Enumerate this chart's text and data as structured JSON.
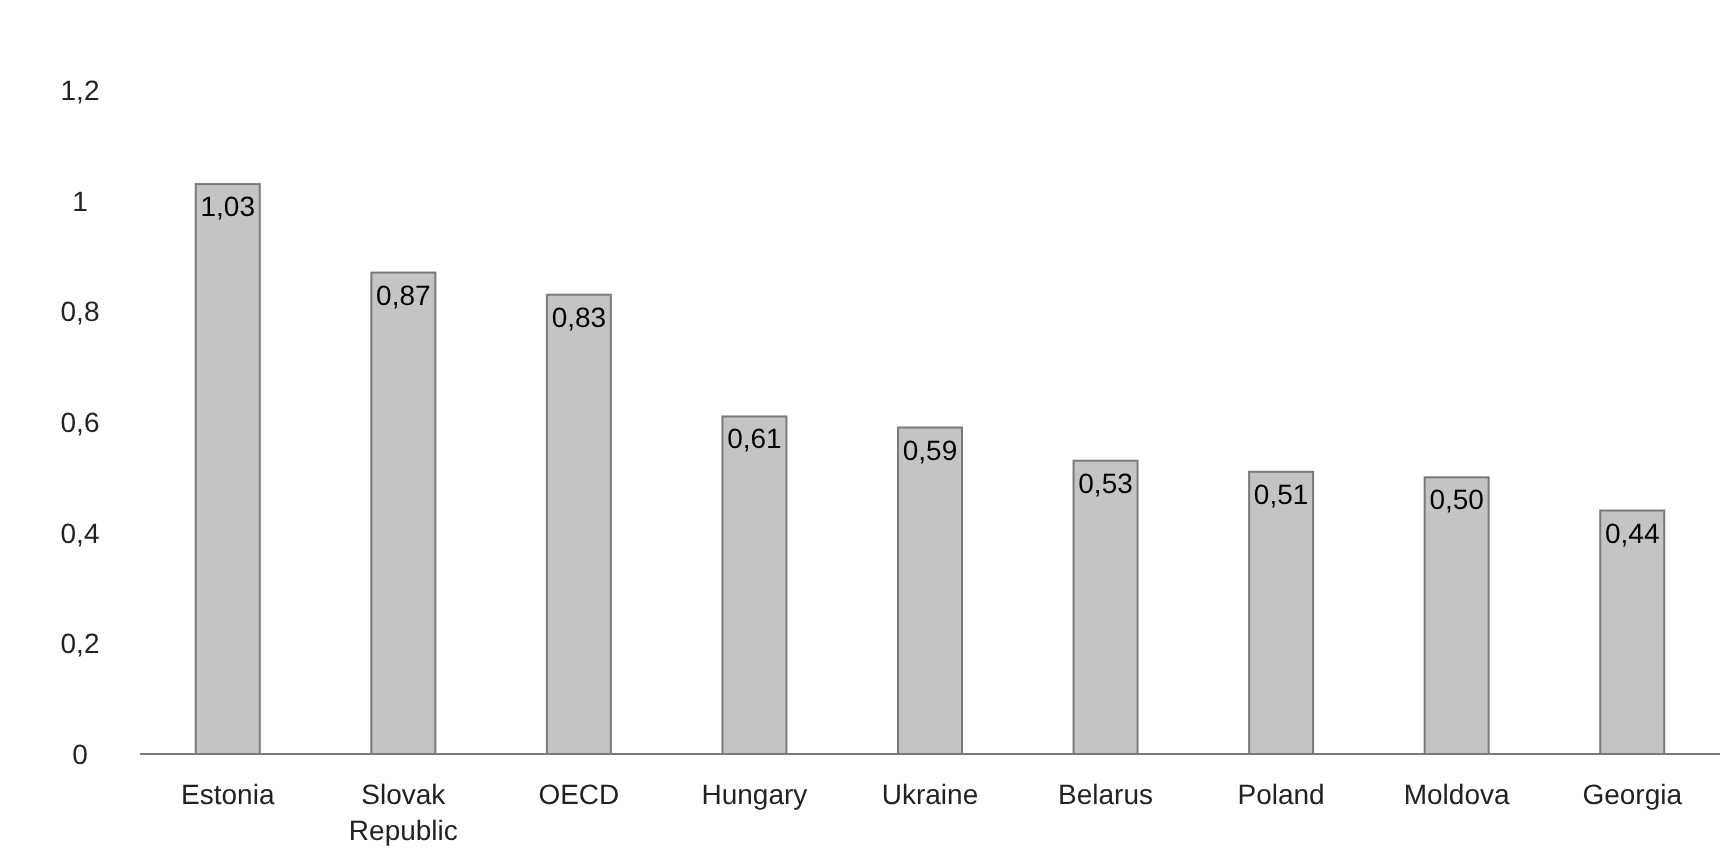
{
  "chart_data": {
    "type": "bar",
    "categories": [
      "Estonia",
      "Slovak Republic",
      "OECD",
      "Hungary",
      "Ukraine",
      "Belarus",
      "Poland",
      "Moldova",
      "Georgia"
    ],
    "values": [
      1.03,
      0.87,
      0.83,
      0.61,
      0.59,
      0.53,
      0.51,
      0.5,
      0.44
    ],
    "value_labels": [
      "1,03",
      "0,87",
      "0,83",
      "0,61",
      "0,59",
      "0,53",
      "0,51",
      "0,50",
      "0,44"
    ],
    "color": "#c4c4c4",
    "ylim": [
      0,
      1.2
    ],
    "yticks": [
      0,
      {
        "value": 0.2,
        "label": "0,2"
      },
      {
        "value": 0.4,
        "label": "0,4"
      },
      {
        "value": 0.6,
        "label": "0,6"
      },
      {
        "value": 0.8,
        "label": "0,8"
      },
      1,
      {
        "value": 1.2,
        "label": "1,2"
      }
    ],
    "grid": false
  }
}
